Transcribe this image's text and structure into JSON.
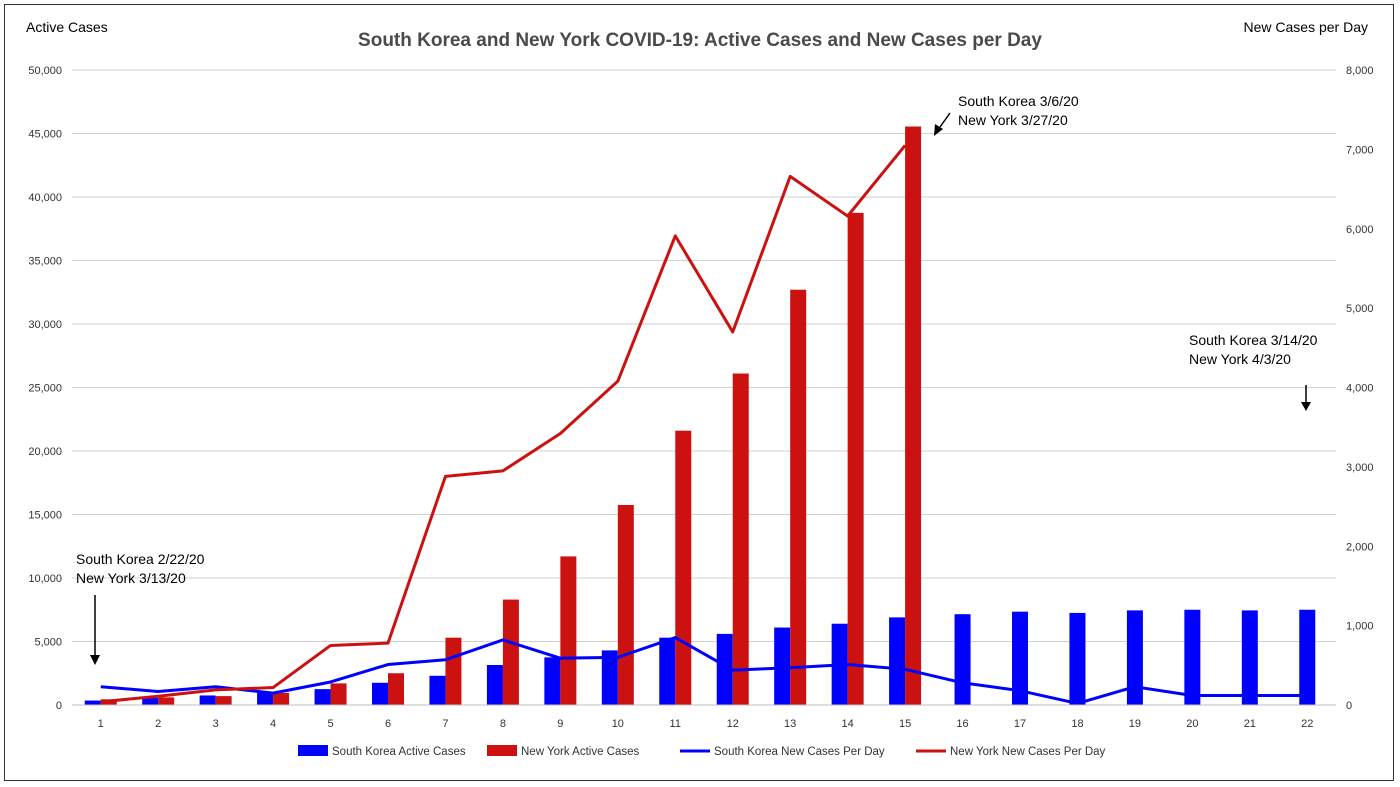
{
  "chart_data": {
    "type": "bar",
    "title": "South Korea and New York COVID-19: Active Cases and New Cases per Day",
    "ylabel": "Active Cases",
    "y2label": "New Cases per Day",
    "ylim": [
      0,
      50000
    ],
    "y2lim": [
      0,
      8000
    ],
    "y_ticks": [
      "0",
      "5,000",
      "10,000",
      "15,000",
      "20,000",
      "25,000",
      "30,000",
      "35,000",
      "40,000",
      "45,000",
      "50,000"
    ],
    "y2_ticks": [
      "0",
      "1,000",
      "2,000",
      "3,000",
      "4,000",
      "5,000",
      "6,000",
      "7,000",
      "8,000"
    ],
    "categories": [
      "1",
      "2",
      "3",
      "4",
      "5",
      "6",
      "7",
      "8",
      "9",
      "10",
      "11",
      "12",
      "13",
      "14",
      "15",
      "16",
      "17",
      "18",
      "19",
      "20",
      "21",
      "22"
    ],
    "grid": true,
    "legend_position": "bottom",
    "series": [
      {
        "name": "South Korea Active Cases",
        "type": "bar",
        "axis": "left",
        "color": "#0000ff",
        "values": [
          350,
          550,
          750,
          1050,
          1250,
          1750,
          2300,
          3150,
          3750,
          4300,
          5300,
          5600,
          6100,
          6400,
          6900,
          7150,
          7350,
          7250,
          7450,
          7500,
          7450,
          7500
        ]
      },
      {
        "name": "New York Active Cases",
        "type": "bar",
        "axis": "left",
        "color": "#cc1111",
        "values": [
          450,
          600,
          700,
          950,
          1700,
          2500,
          5300,
          8300,
          11700,
          15750,
          21600,
          26100,
          32700,
          38750,
          45550,
          null,
          null,
          null,
          null,
          null,
          null,
          null
        ]
      },
      {
        "name": "South Korea New Cases Per Day",
        "type": "line",
        "axis": "right",
        "color": "#0000ff",
        "values": [
          230,
          170,
          230,
          150,
          290,
          510,
          570,
          820,
          590,
          600,
          850,
          440,
          470,
          510,
          450,
          280,
          180,
          20,
          230,
          120,
          120,
          120
        ]
      },
      {
        "name": "New York New Cases Per Day",
        "type": "line",
        "axis": "right",
        "color": "#cc1111",
        "values": [
          40,
          110,
          190,
          220,
          750,
          780,
          2880,
          2950,
          3420,
          4080,
          5910,
          4700,
          6660,
          6160,
          7050,
          null,
          null,
          null,
          null,
          null,
          null,
          null
        ]
      }
    ],
    "annotations": [
      {
        "lines": [
          "South Korea 2/22/20",
          "New York 3/13/20"
        ]
      },
      {
        "lines": [
          "South Korea 3/6/20",
          "New York 3/27/20"
        ]
      },
      {
        "lines": [
          "South Korea 3/14/20",
          "New York 4/3/20"
        ]
      }
    ]
  }
}
